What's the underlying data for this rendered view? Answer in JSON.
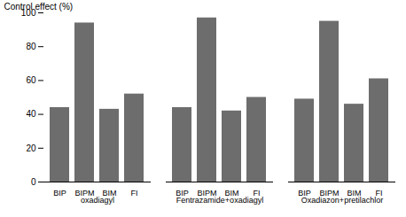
{
  "chart_data": {
    "type": "bar",
    "categories": [
      "oxadiagyl",
      "Fentrazamide+oxadiagyl",
      "Oxadiazon+pretilachlor"
    ],
    "series": [
      {
        "name": "BIP",
        "color": "#6d6d6d",
        "values": [
          44,
          44,
          49
        ]
      },
      {
        "name": "BIPM",
        "color": "#6d6d6d",
        "values": [
          94,
          97,
          95
        ]
      },
      {
        "name": "BIM",
        "color": "#6d6d6d",
        "values": [
          43,
          42,
          46
        ]
      },
      {
        "name": "FI",
        "color": "#6d6d6d",
        "values": [
          52,
          50,
          61
        ]
      }
    ],
    "ylabel": "Control effect (%)",
    "ylim": [
      0,
      100
    ],
    "yticks": [
      0,
      20,
      40,
      60,
      80,
      100
    ],
    "grid": false
  }
}
